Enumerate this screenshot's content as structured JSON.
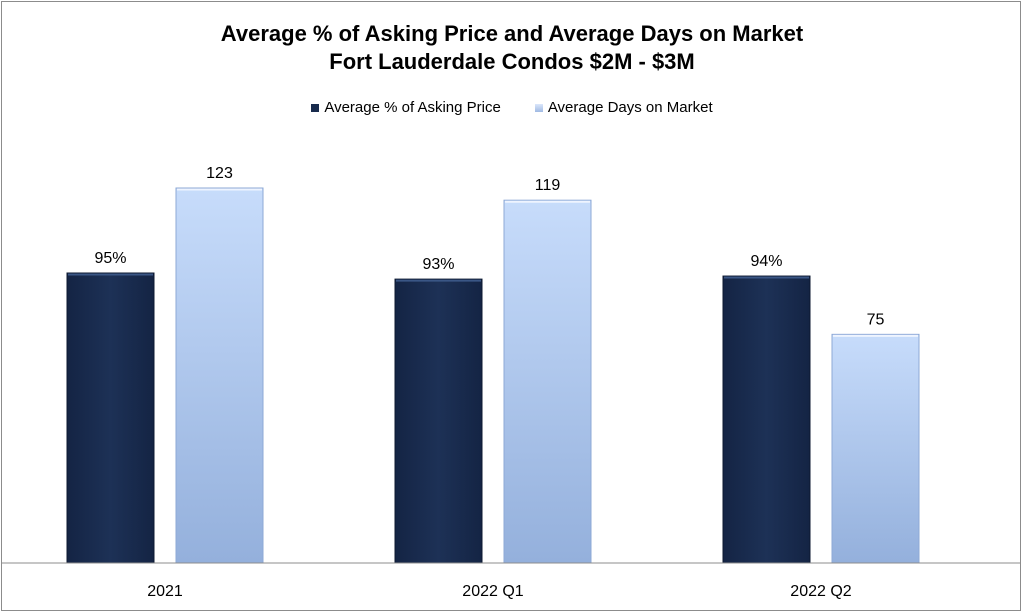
{
  "colors": {
    "asking": "#182b4d",
    "days": "#b3c9ec",
    "axis": "#8c8c8c"
  },
  "chart_data": {
    "type": "bar",
    "title": [
      "Average % of Asking Price and Average Days on Market",
      "Fort Lauderdale Condos $2M - $3M"
    ],
    "categories": [
      "2021",
      "2022 Q1",
      "2022 Q2"
    ],
    "series": [
      {
        "name": "Average % of Asking Price",
        "values": [
          95,
          93,
          94
        ],
        "labels": [
          "95%",
          "93%",
          "94%"
        ],
        "color": "#182b4d"
      },
      {
        "name": "Average Days on Market",
        "values": [
          123,
          119,
          75
        ],
        "labels": [
          "123",
          "119",
          "75"
        ],
        "color": "#b3c9ec"
      }
    ],
    "legend": "top-center",
    "grid": false
  }
}
